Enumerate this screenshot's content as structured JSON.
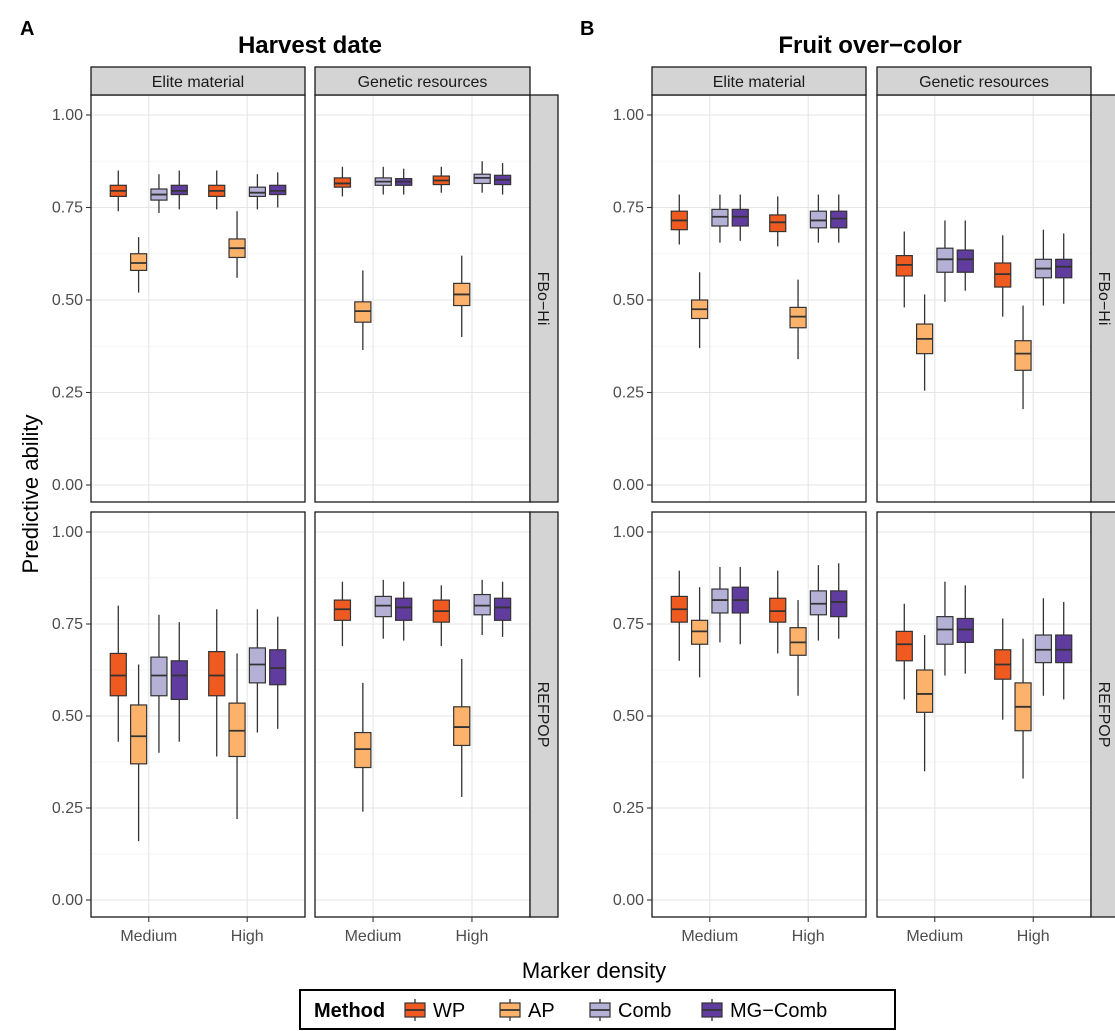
{
  "figure": {
    "panel_tags": [
      "A",
      "B"
    ],
    "titles": [
      "Harvest date",
      "Fruit over−color"
    ],
    "column_strips": [
      "Elite material",
      "Genetic resources"
    ],
    "row_strips": [
      "FBo−Hi",
      "REFPOP"
    ],
    "y_axis_label": "Predictive ability",
    "x_axis_label": "Marker density",
    "y_ticks": [
      "0.00",
      "0.25",
      "0.50",
      "0.75",
      "1.00"
    ],
    "x_ticks": [
      "Medium",
      "High"
    ]
  },
  "legend": {
    "title": "Method",
    "items": [
      {
        "label": "WP",
        "color": "#EF5A21"
      },
      {
        "label": "AP",
        "color": "#FDB26B"
      },
      {
        "label": "Comb",
        "color": "#B4B0D6"
      },
      {
        "label": "MG−Comb",
        "color": "#603C9F"
      }
    ]
  },
  "chart_data": {
    "type": "boxplot",
    "ylim": [
      0,
      1
    ],
    "methods": [
      "WP",
      "AP",
      "Comb",
      "MG−Comb"
    ],
    "categories": [
      "Medium",
      "High"
    ],
    "grid": true,
    "legend_position": "bottom",
    "panels": [
      {
        "trait": "Harvest date",
        "population": "Elite material",
        "row": "FBo−Hi",
        "boxes": [
          {
            "x": "Medium",
            "method": "WP",
            "stats": [
              0.74,
              0.78,
              0.795,
              0.81,
              0.85
            ]
          },
          {
            "x": "Medium",
            "method": "AP",
            "stats": [
              0.52,
              0.58,
              0.6,
              0.625,
              0.67
            ]
          },
          {
            "x": "Medium",
            "method": "Comb",
            "stats": [
              0.735,
              0.77,
              0.785,
              0.8,
              0.84
            ]
          },
          {
            "x": "Medium",
            "method": "MG−Comb",
            "stats": [
              0.745,
              0.785,
              0.795,
              0.81,
              0.85
            ]
          },
          {
            "x": "High",
            "method": "WP",
            "stats": [
              0.745,
              0.78,
              0.795,
              0.81,
              0.85
            ]
          },
          {
            "x": "High",
            "method": "AP",
            "stats": [
              0.56,
              0.615,
              0.64,
              0.665,
              0.74
            ]
          },
          {
            "x": "High",
            "method": "Comb",
            "stats": [
              0.745,
              0.78,
              0.79,
              0.805,
              0.84
            ]
          },
          {
            "x": "High",
            "method": "MG−Comb",
            "stats": [
              0.75,
              0.785,
              0.795,
              0.81,
              0.845
            ]
          }
        ]
      },
      {
        "trait": "Harvest date",
        "population": "Genetic resources",
        "row": "FBo−Hi",
        "boxes": [
          {
            "x": "Medium",
            "method": "WP",
            "stats": [
              0.78,
              0.805,
              0.815,
              0.83,
              0.86
            ]
          },
          {
            "x": "Medium",
            "method": "AP",
            "stats": [
              0.365,
              0.44,
              0.47,
              0.495,
              0.58
            ]
          },
          {
            "x": "Medium",
            "method": "Comb",
            "stats": [
              0.785,
              0.81,
              0.82,
              0.83,
              0.86
            ]
          },
          {
            "x": "Medium",
            "method": "MG−Comb",
            "stats": [
              0.785,
              0.81,
              0.82,
              0.828,
              0.855
            ]
          },
          {
            "x": "High",
            "method": "WP",
            "stats": [
              0.79,
              0.812,
              0.823,
              0.835,
              0.86
            ]
          },
          {
            "x": "High",
            "method": "AP",
            "stats": [
              0.4,
              0.485,
              0.515,
              0.545,
              0.62
            ]
          },
          {
            "x": "High",
            "method": "Comb",
            "stats": [
              0.79,
              0.815,
              0.83,
              0.84,
              0.875
            ]
          },
          {
            "x": "High",
            "method": "MG−Comb",
            "stats": [
              0.785,
              0.812,
              0.825,
              0.837,
              0.87
            ]
          }
        ]
      },
      {
        "trait": "Harvest date",
        "population": "Elite material",
        "row": "REFPOP",
        "boxes": [
          {
            "x": "Medium",
            "method": "WP",
            "stats": [
              0.43,
              0.555,
              0.61,
              0.67,
              0.8
            ]
          },
          {
            "x": "Medium",
            "method": "AP",
            "stats": [
              0.16,
              0.37,
              0.445,
              0.53,
              0.64
            ]
          },
          {
            "x": "Medium",
            "method": "Comb",
            "stats": [
              0.4,
              0.555,
              0.61,
              0.66,
              0.775
            ]
          },
          {
            "x": "Medium",
            "method": "MG−Comb",
            "stats": [
              0.43,
              0.545,
              0.61,
              0.65,
              0.755
            ]
          },
          {
            "x": "High",
            "method": "WP",
            "stats": [
              0.39,
              0.555,
              0.61,
              0.675,
              0.79
            ]
          },
          {
            "x": "High",
            "method": "AP",
            "stats": [
              0.22,
              0.39,
              0.46,
              0.535,
              0.67
            ]
          },
          {
            "x": "High",
            "method": "Comb",
            "stats": [
              0.455,
              0.59,
              0.64,
              0.685,
              0.79
            ]
          },
          {
            "x": "High",
            "method": "MG−Comb",
            "stats": [
              0.465,
              0.585,
              0.63,
              0.68,
              0.77
            ]
          }
        ]
      },
      {
        "trait": "Harvest date",
        "population": "Genetic resources",
        "row": "REFPOP",
        "boxes": [
          {
            "x": "Medium",
            "method": "WP",
            "stats": [
              0.69,
              0.76,
              0.79,
              0.815,
              0.865
            ]
          },
          {
            "x": "Medium",
            "method": "AP",
            "stats": [
              0.24,
              0.36,
              0.41,
              0.455,
              0.59
            ]
          },
          {
            "x": "Medium",
            "method": "Comb",
            "stats": [
              0.71,
              0.77,
              0.8,
              0.825,
              0.87
            ]
          },
          {
            "x": "Medium",
            "method": "MG−Comb",
            "stats": [
              0.705,
              0.76,
              0.795,
              0.82,
              0.865
            ]
          },
          {
            "x": "High",
            "method": "WP",
            "stats": [
              0.69,
              0.755,
              0.785,
              0.815,
              0.855
            ]
          },
          {
            "x": "High",
            "method": "AP",
            "stats": [
              0.28,
              0.42,
              0.47,
              0.525,
              0.655
            ]
          },
          {
            "x": "High",
            "method": "Comb",
            "stats": [
              0.72,
              0.775,
              0.8,
              0.83,
              0.87
            ]
          },
          {
            "x": "High",
            "method": "MG−Comb",
            "stats": [
              0.715,
              0.76,
              0.795,
              0.82,
              0.865
            ]
          }
        ]
      },
      {
        "trait": "Fruit over−color",
        "population": "Elite material",
        "row": "FBo−Hi",
        "boxes": [
          {
            "x": "Medium",
            "method": "WP",
            "stats": [
              0.65,
              0.69,
              0.715,
              0.74,
              0.785
            ]
          },
          {
            "x": "Medium",
            "method": "AP",
            "stats": [
              0.37,
              0.45,
              0.475,
              0.5,
              0.575
            ]
          },
          {
            "x": "Medium",
            "method": "Comb",
            "stats": [
              0.655,
              0.7,
              0.725,
              0.745,
              0.785
            ]
          },
          {
            "x": "Medium",
            "method": "MG−Comb",
            "stats": [
              0.66,
              0.7,
              0.725,
              0.745,
              0.785
            ]
          },
          {
            "x": "High",
            "method": "WP",
            "stats": [
              0.645,
              0.685,
              0.71,
              0.73,
              0.78
            ]
          },
          {
            "x": "High",
            "method": "AP",
            "stats": [
              0.34,
              0.425,
              0.455,
              0.48,
              0.555
            ]
          },
          {
            "x": "High",
            "method": "Comb",
            "stats": [
              0.655,
              0.695,
              0.715,
              0.74,
              0.785
            ]
          },
          {
            "x": "High",
            "method": "MG−Comb",
            "stats": [
              0.655,
              0.695,
              0.72,
              0.74,
              0.785
            ]
          }
        ]
      },
      {
        "trait": "Fruit over−color",
        "population": "Genetic resources",
        "row": "FBo−Hi",
        "boxes": [
          {
            "x": "Medium",
            "method": "WP",
            "stats": [
              0.48,
              0.565,
              0.595,
              0.62,
              0.685
            ]
          },
          {
            "x": "Medium",
            "method": "AP",
            "stats": [
              0.255,
              0.355,
              0.395,
              0.435,
              0.515
            ]
          },
          {
            "x": "Medium",
            "method": "Comb",
            "stats": [
              0.495,
              0.575,
              0.61,
              0.64,
              0.715
            ]
          },
          {
            "x": "Medium",
            "method": "MG−Comb",
            "stats": [
              0.525,
              0.575,
              0.61,
              0.635,
              0.715
            ]
          },
          {
            "x": "High",
            "method": "WP",
            "stats": [
              0.455,
              0.535,
              0.57,
              0.6,
              0.675
            ]
          },
          {
            "x": "High",
            "method": "AP",
            "stats": [
              0.205,
              0.31,
              0.355,
              0.39,
              0.485
            ]
          },
          {
            "x": "High",
            "method": "Comb",
            "stats": [
              0.485,
              0.56,
              0.585,
              0.61,
              0.69
            ]
          },
          {
            "x": "High",
            "method": "MG−Comb",
            "stats": [
              0.49,
              0.56,
              0.59,
              0.61,
              0.68
            ]
          }
        ]
      },
      {
        "trait": "Fruit over−color",
        "population": "Elite material",
        "row": "REFPOP",
        "boxes": [
          {
            "x": "Medium",
            "method": "WP",
            "stats": [
              0.65,
              0.755,
              0.79,
              0.825,
              0.895
            ]
          },
          {
            "x": "Medium",
            "method": "AP",
            "stats": [
              0.605,
              0.695,
              0.73,
              0.76,
              0.85
            ]
          },
          {
            "x": "Medium",
            "method": "Comb",
            "stats": [
              0.7,
              0.78,
              0.815,
              0.845,
              0.905
            ]
          },
          {
            "x": "Medium",
            "method": "MG−Comb",
            "stats": [
              0.695,
              0.78,
              0.815,
              0.85,
              0.905
            ]
          },
          {
            "x": "High",
            "method": "WP",
            "stats": [
              0.67,
              0.755,
              0.785,
              0.82,
              0.895
            ]
          },
          {
            "x": "High",
            "method": "AP",
            "stats": [
              0.555,
              0.665,
              0.7,
              0.74,
              0.815
            ]
          },
          {
            "x": "High",
            "method": "Comb",
            "stats": [
              0.705,
              0.775,
              0.805,
              0.84,
              0.91
            ]
          },
          {
            "x": "High",
            "method": "MG−Comb",
            "stats": [
              0.71,
              0.77,
              0.81,
              0.84,
              0.915
            ]
          }
        ]
      },
      {
        "trait": "Fruit over−color",
        "population": "Genetic resources",
        "row": "REFPOP",
        "boxes": [
          {
            "x": "Medium",
            "method": "WP",
            "stats": [
              0.545,
              0.65,
              0.695,
              0.73,
              0.805
            ]
          },
          {
            "x": "Medium",
            "method": "AP",
            "stats": [
              0.35,
              0.51,
              0.56,
              0.625,
              0.72
            ]
          },
          {
            "x": "Medium",
            "method": "Comb",
            "stats": [
              0.61,
              0.695,
              0.735,
              0.77,
              0.865
            ]
          },
          {
            "x": "Medium",
            "method": "MG−Comb",
            "stats": [
              0.615,
              0.7,
              0.735,
              0.765,
              0.855
            ]
          },
          {
            "x": "High",
            "method": "WP",
            "stats": [
              0.49,
              0.6,
              0.64,
              0.68,
              0.765
            ]
          },
          {
            "x": "High",
            "method": "AP",
            "stats": [
              0.33,
              0.46,
              0.525,
              0.59,
              0.71
            ]
          },
          {
            "x": "High",
            "method": "Comb",
            "stats": [
              0.555,
              0.645,
              0.68,
              0.72,
              0.82
            ]
          },
          {
            "x": "High",
            "method": "MG−Comb",
            "stats": [
              0.545,
              0.645,
              0.68,
              0.72,
              0.81
            ]
          }
        ]
      }
    ]
  }
}
